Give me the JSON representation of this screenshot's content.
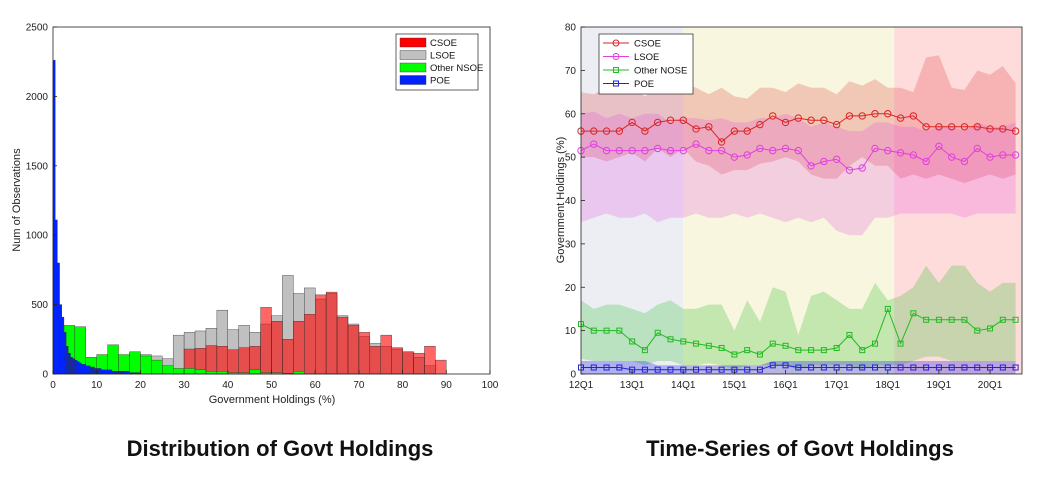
{
  "captions": {
    "left": "Distribution of Govt Holdings",
    "right": "Time-Series of Govt Holdings"
  },
  "chart_data": [
    {
      "type": "bar",
      "stacked": "overlay",
      "title": "",
      "xlabel": "Government Holdings (%)",
      "ylabel": "Num of Observations",
      "xlim": [
        0,
        100
      ],
      "ylim": [
        0,
        2500
      ],
      "xticks": [
        0,
        10,
        20,
        30,
        40,
        50,
        60,
        70,
        80,
        90,
        100
      ],
      "yticks": [
        0,
        500,
        1000,
        1500,
        2000,
        2500
      ],
      "legend_position": "top-right",
      "series": [
        {
          "name": "CSOE",
          "color": "#ff0000",
          "bin_width": 2.5,
          "x": [
            27.5,
            30,
            32.5,
            35,
            37.5,
            40,
            42.5,
            45,
            47.5,
            50,
            52.5,
            55,
            57.5,
            60,
            62.5,
            65,
            67.5,
            70,
            72.5,
            75,
            77.5,
            80,
            82.5,
            85,
            87.5
          ],
          "values": [
            25,
            180,
            185,
            205,
            200,
            175,
            190,
            200,
            480,
            380,
            250,
            380,
            430,
            570,
            590,
            410,
            350,
            300,
            200,
            280,
            190,
            160,
            150,
            200,
            100
          ]
        },
        {
          "name": "LSOE",
          "color": "#c0c0c0",
          "bin_width": 2.5,
          "x": [
            17.5,
            20,
            22.5,
            25,
            27.5,
            30,
            32.5,
            35,
            37.5,
            40,
            42.5,
            45,
            47.5,
            50,
            52.5,
            55,
            57.5,
            60,
            62.5,
            65,
            67.5,
            70,
            72.5,
            75,
            77.5,
            80,
            82.5,
            85
          ],
          "values": [
            150,
            140,
            130,
            110,
            280,
            300,
            310,
            330,
            460,
            320,
            350,
            300,
            360,
            420,
            710,
            580,
            620,
            540,
            580,
            420,
            360,
            270,
            220,
            200,
            180,
            160,
            120,
            60
          ]
        },
        {
          "name": "Other NSOE",
          "color": "#00ff00",
          "bin_width": 2.5,
          "x": [
            2.5,
            5,
            7.5,
            10,
            12.5,
            15,
            17.5,
            20,
            22.5,
            25,
            27.5,
            30,
            32.5,
            35,
            37.5,
            40,
            42.5,
            45,
            47.5,
            50,
            52.5,
            55
          ],
          "values": [
            350,
            340,
            120,
            140,
            210,
            140,
            160,
            130,
            100,
            60,
            40,
            40,
            30,
            20,
            20,
            10,
            10,
            30,
            10,
            10,
            5,
            20
          ]
        },
        {
          "name": "POE",
          "color": "#0022ff",
          "bin_width": 0.5,
          "x": [
            0,
            0.5,
            1,
            1.5,
            2,
            2.5,
            3,
            3.5,
            4,
            4.5,
            5,
            5.5,
            6,
            6.5,
            7,
            7.5,
            8,
            8.5,
            9,
            9.5,
            10,
            10.5,
            11,
            11.5,
            12,
            12.5,
            13,
            13.5,
            14,
            14.5,
            15,
            15.5,
            16,
            16.5,
            17,
            17.5,
            18,
            18.5,
            19,
            19.5
          ],
          "values": [
            2260,
            1110,
            800,
            500,
            410,
            300,
            200,
            150,
            120,
            110,
            100,
            90,
            80,
            70,
            70,
            60,
            60,
            50,
            50,
            40,
            40,
            40,
            30,
            30,
            30,
            30,
            30,
            20,
            20,
            20,
            20,
            20,
            20,
            20,
            20,
            10,
            10,
            10,
            10,
            10
          ]
        }
      ]
    },
    {
      "type": "line",
      "title": "",
      "xlabel": "",
      "ylabel": "Government Holdings (%)",
      "ylim": [
        0,
        80
      ],
      "yticks": [
        0,
        10,
        20,
        30,
        40,
        50,
        60,
        70,
        80
      ],
      "xlim": [
        0,
        34.5
      ],
      "xtick_positions": [
        0,
        4,
        8,
        12,
        16,
        20,
        24,
        28,
        32
      ],
      "xtick_labels": [
        "12Q1",
        "13Q1",
        "14Q1",
        "15Q1",
        "16Q1",
        "17Q1",
        "18Q1",
        "19Q1",
        "20Q1"
      ],
      "x": [
        0,
        1,
        2,
        3,
        4,
        5,
        6,
        7,
        8,
        9,
        10,
        11,
        12,
        13,
        14,
        15,
        16,
        17,
        18,
        19,
        20,
        21,
        22,
        23,
        24,
        25,
        26,
        27,
        28,
        29,
        30,
        31,
        32,
        33,
        34
      ],
      "legend_position": "top-left",
      "background_periods": [
        {
          "start": 0,
          "end": 8,
          "color": "#eceef4"
        },
        {
          "start": 8,
          "end": 24.5,
          "color": "#f8f6de"
        },
        {
          "start": 24.5,
          "end": 34.5,
          "color": "#ffdcdc"
        }
      ],
      "series": [
        {
          "name": "CSOE",
          "color": "#d92525",
          "marker": "circle",
          "values": [
            56,
            56,
            56,
            56,
            58,
            56,
            58,
            58.5,
            58.5,
            56.5,
            57,
            53.5,
            56,
            56,
            57.5,
            59.5,
            58,
            59,
            58.5,
            58.5,
            57.5,
            59.5,
            59.5,
            60,
            60,
            59,
            59.5,
            57,
            57,
            57,
            57,
            57,
            56.5,
            56.5,
            56
          ],
          "band_upper": [
            65,
            64.5,
            66,
            67,
            66,
            64,
            66,
            65,
            67,
            66,
            64.5,
            66,
            64,
            63.5,
            66,
            66,
            65,
            67,
            66,
            66,
            64.5,
            67.5,
            66.5,
            68,
            66,
            66,
            65,
            73,
            73.5,
            66,
            65.5,
            70,
            69,
            71,
            67
          ],
          "band_lower": [
            50,
            50,
            49,
            50,
            51,
            49,
            52,
            50,
            52,
            49,
            48,
            46,
            47,
            47,
            48.5,
            49,
            50,
            49,
            46,
            45,
            45,
            48,
            50,
            48,
            48,
            45,
            46,
            45,
            46,
            45,
            44,
            45,
            46,
            45,
            46
          ]
        },
        {
          "name": "LSOE",
          "color": "#e040e0",
          "marker": "circle",
          "values": [
            51.5,
            53,
            51.5,
            51.5,
            51.5,
            51.5,
            52,
            51.5,
            51.5,
            53,
            51.5,
            51.5,
            50,
            50.5,
            52,
            51.5,
            52,
            51.5,
            48,
            49,
            49.5,
            47,
            47.5,
            52,
            51.5,
            51,
            50.5,
            49,
            52.5,
            50,
            49,
            52,
            50,
            50.5,
            50.5
          ],
          "band_upper": [
            60,
            60.5,
            59,
            60,
            59,
            60,
            60,
            58,
            59,
            59,
            58.5,
            59,
            58,
            58,
            59,
            59,
            60,
            59,
            57,
            58,
            57,
            56,
            56,
            58,
            58,
            57,
            57,
            56,
            57,
            57,
            56,
            58,
            57,
            57,
            58
          ],
          "band_lower": [
            35,
            36,
            37,
            36,
            36,
            37,
            35,
            36,
            36,
            37,
            36,
            36,
            37,
            36,
            37,
            36,
            35,
            36,
            35,
            36,
            33,
            32,
            32,
            36,
            36,
            37,
            37,
            37,
            37,
            37,
            36,
            37,
            37,
            37,
            37
          ]
        },
        {
          "name": "Other NOSE",
          "color": "#22bb22",
          "marker": "square",
          "values": [
            11.5,
            10,
            10,
            10,
            7.5,
            5.5,
            9.5,
            8,
            7.5,
            7,
            6.5,
            6,
            4.5,
            5.5,
            4.5,
            7,
            6.5,
            5.5,
            5.5,
            5.5,
            6,
            9,
            5.5,
            7,
            15,
            7,
            14,
            12.5,
            12.5,
            12.5,
            12.5,
            10,
            10.5,
            12.5,
            12.5
          ],
          "band_upper": [
            17,
            15,
            16,
            16,
            15,
            14,
            16,
            17,
            15,
            15,
            16,
            16,
            10,
            17,
            12,
            20,
            19,
            9,
            18,
            19,
            17,
            15,
            15,
            21,
            17,
            18,
            20,
            25,
            21,
            25,
            25,
            21,
            19,
            21,
            21
          ],
          "band_lower": [
            3.5,
            3,
            3,
            3,
            3,
            2,
            3,
            3,
            2,
            2,
            2.5,
            2,
            1,
            2,
            2,
            2,
            2,
            1,
            2,
            2,
            2,
            2,
            1,
            2,
            2,
            2,
            3,
            4,
            4,
            3,
            3,
            3,
            3,
            3,
            3
          ]
        },
        {
          "name": "POE",
          "color": "#2222dd",
          "marker": "square",
          "values": [
            1.5,
            1.5,
            1.5,
            1.5,
            1,
            1,
            1,
            1,
            1,
            1,
            1,
            1,
            1,
            1,
            1,
            2,
            2,
            1.5,
            1.5,
            1.5,
            1.5,
            1.5,
            1.5,
            1.5,
            1.5,
            1.5,
            1.5,
            1.5,
            1.5,
            1.5,
            1.5,
            1.5,
            1.5,
            1.5,
            1.5
          ],
          "band_upper": [
            3,
            3,
            3,
            3,
            3,
            3,
            2,
            2,
            2,
            2,
            2,
            2,
            2,
            2,
            2,
            3,
            3,
            3,
            3,
            3,
            3,
            3,
            3,
            3,
            3,
            3,
            3,
            3,
            3,
            3,
            3,
            3,
            3,
            3,
            3
          ],
          "band_lower": [
            0,
            0,
            0,
            0,
            0,
            0,
            0,
            0,
            0,
            0,
            0,
            0,
            0,
            0,
            0,
            0,
            0,
            0,
            0,
            0,
            0,
            0,
            0,
            0,
            0,
            0,
            0,
            0,
            0,
            0,
            0,
            0,
            0,
            0,
            0
          ]
        }
      ]
    }
  ]
}
